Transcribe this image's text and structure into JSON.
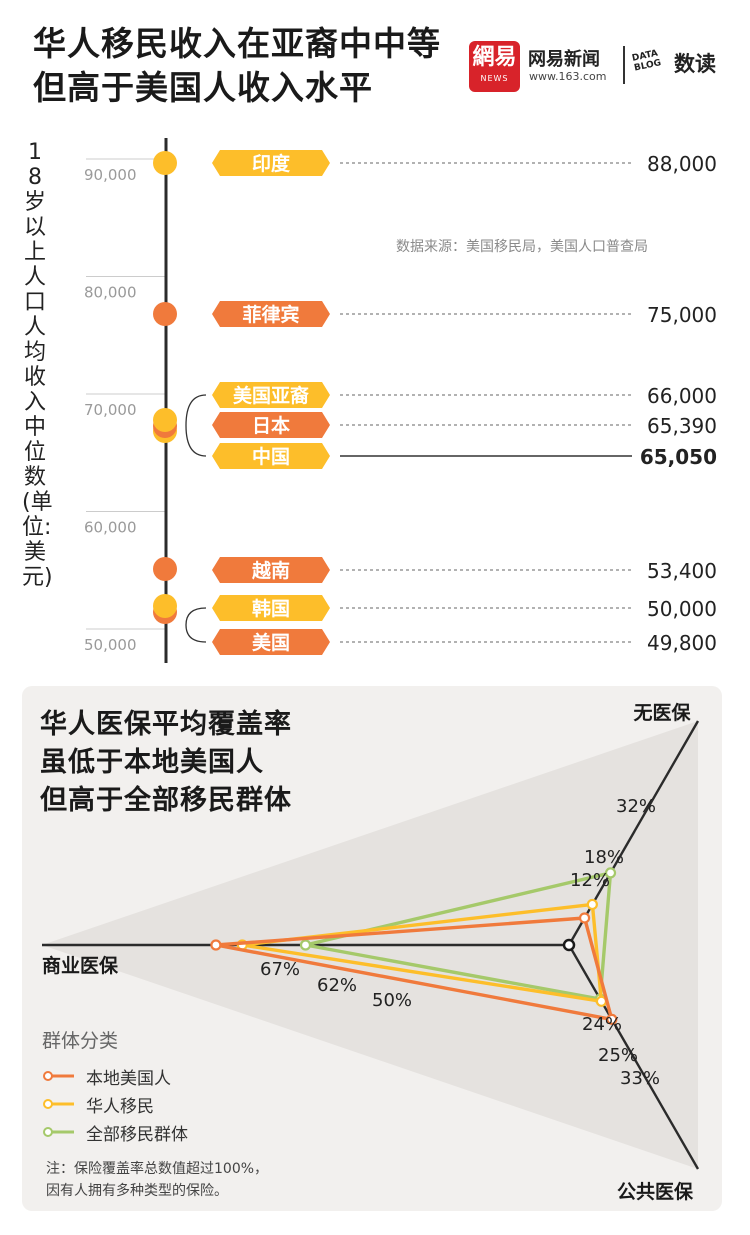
{
  "header": {
    "title_line1": "华人移民收入在亚裔中中等",
    "title_line2": "但高于美国人收入水平",
    "logo_text": "網易",
    "logo_sub": "NEWS",
    "brand_name": "网易新闻",
    "brand_url": "www.163.com",
    "datablog_line1": "DATA",
    "datablog_line2": "BLOG",
    "shudu": "数读"
  },
  "colors": {
    "orange": "#f07a3c",
    "yellow": "#fdbe2a",
    "green": "#a5c96a",
    "axis": "#2b2b2b",
    "grid": "#cccccc"
  },
  "source": "数据来源：美国移民局，美国人口普查局",
  "chart_data": [
    {
      "type": "bar",
      "ylabel": "18岁以上人口人均收入中位数(单位:美元)",
      "ylim": [
        47000,
        95000
      ],
      "yticks": [
        "90,000",
        "80,000",
        "70,000",
        "60,000",
        "50,000"
      ],
      "ytick_values": [
        90000,
        80000,
        70000,
        60000,
        50000
      ],
      "categories": [
        "印度",
        "菲律宾",
        "美国亚裔",
        "日本",
        "中国",
        "越南",
        "韩国",
        "美国"
      ],
      "values": [
        88000,
        75000,
        66000,
        65390,
        65050,
        53400,
        50000,
        49800
      ],
      "value_labels": [
        "88,000",
        "75,000",
        "66,000",
        "65,390",
        "65,050",
        "53,400",
        "50,000",
        "49,800"
      ],
      "tag_colors": [
        "yellow",
        "orange",
        "yellow",
        "orange",
        "yellow",
        "orange",
        "yellow",
        "orange"
      ],
      "highlight": "中国"
    },
    {
      "type": "radar",
      "title_line1": "华人医保平均覆盖率",
      "title_line2": "虽低于本地美国人",
      "title_line3": "但高于全部移民群体",
      "axes": [
        "无医保",
        "公共医保",
        "商业医保"
      ],
      "rmax": 100,
      "series": [
        {
          "name": "本地美国人",
          "color": "orange",
          "values": [
            12,
            33,
            67
          ],
          "labels": [
            "12%",
            "33%",
            "67%"
          ]
        },
        {
          "name": "华人移民",
          "color": "yellow",
          "values": [
            18,
            25,
            62
          ],
          "labels": [
            "18%",
            "25%",
            "62%"
          ]
        },
        {
          "name": "全部移民群体",
          "color": "green",
          "values": [
            32,
            24,
            50
          ],
          "labels": [
            "32%",
            "24%",
            "50%"
          ]
        }
      ],
      "legend_title": "群体分类",
      "note_line1": "注：保险覆盖率总数值超过100%，",
      "note_line2": "因有人拥有多种类型的保险。"
    }
  ]
}
